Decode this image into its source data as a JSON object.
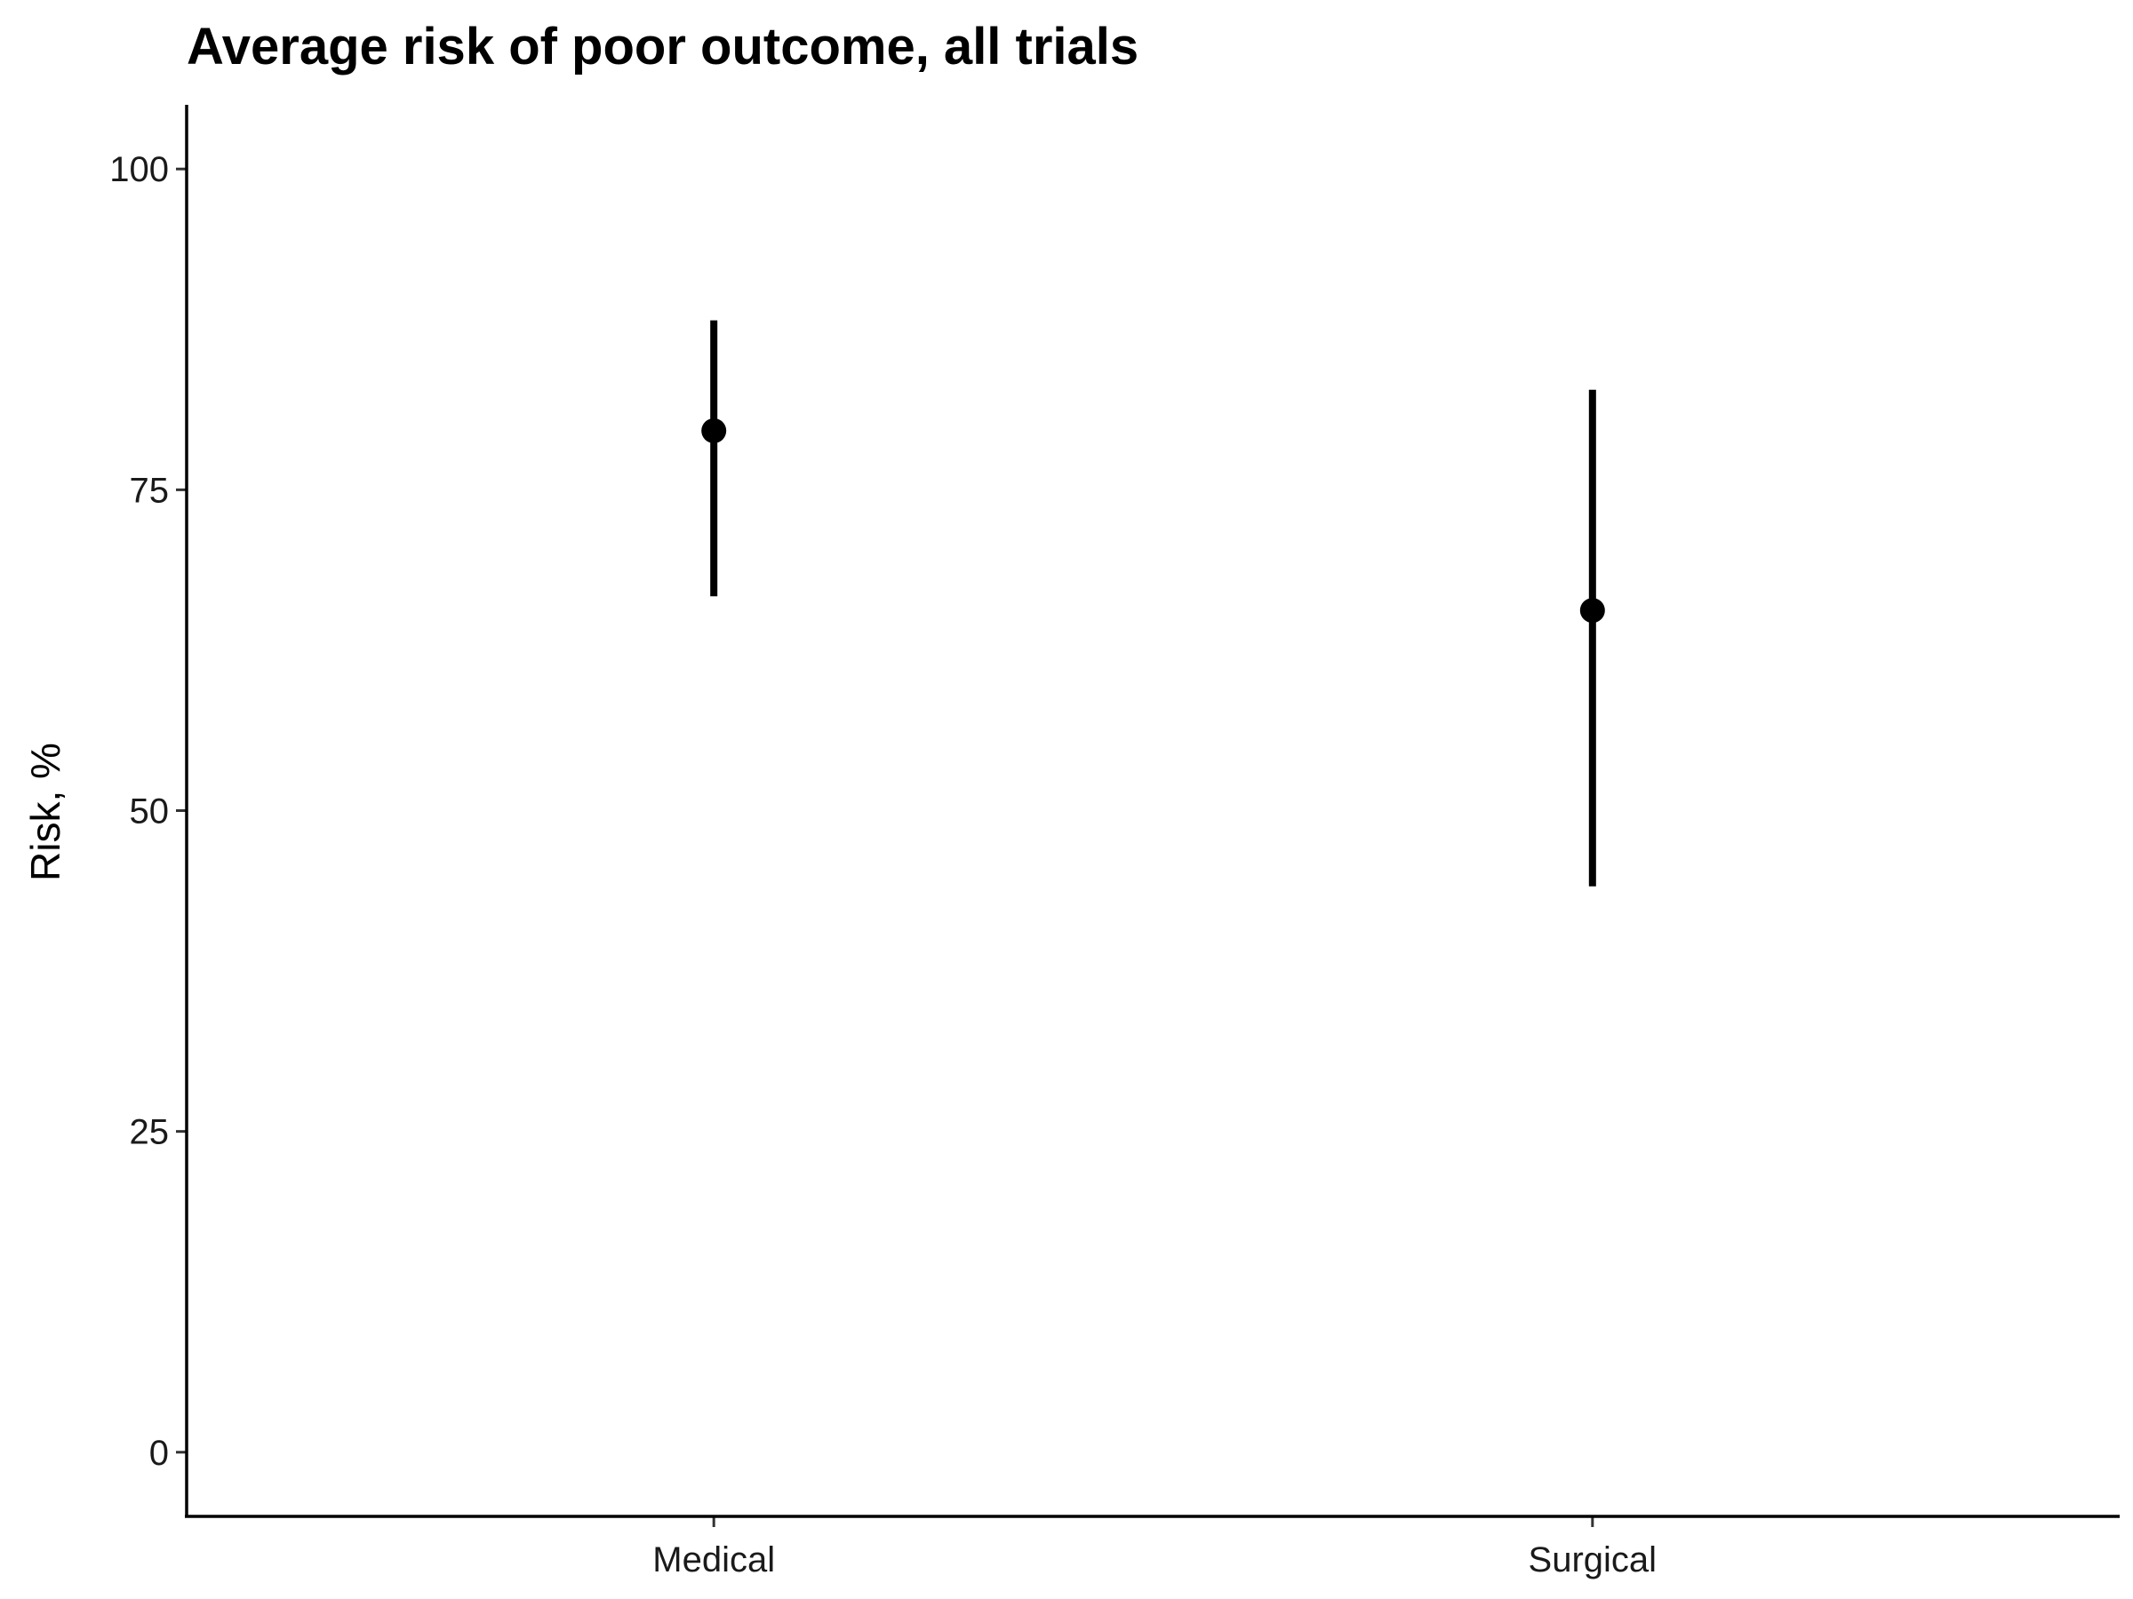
{
  "chart_data": {
    "type": "scatter",
    "title": "Average risk of poor outcome, all trials",
    "xlabel": "",
    "ylabel": "Risk, %",
    "categories": [
      "Medical",
      "Surgical"
    ],
    "points": [
      {
        "category": "Medical",
        "value": 79.6,
        "lower": 66.7,
        "upper": 88.2
      },
      {
        "category": "Surgical",
        "value": 65.6,
        "lower": 44.1,
        "upper": 82.8
      }
    ],
    "ylim": [
      -5,
      105
    ],
    "yticks": [
      0,
      25,
      50,
      75,
      100
    ],
    "ytick_labels": [
      "0",
      "25",
      "50",
      "75",
      "100"
    ],
    "grid": false,
    "legend": "none",
    "colors": {
      "mark": "#000000"
    }
  }
}
